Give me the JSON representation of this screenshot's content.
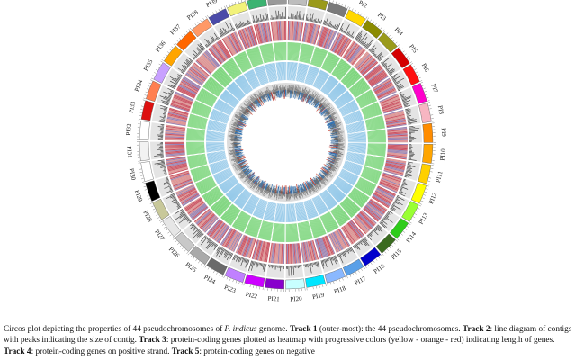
{
  "figure": {
    "chromosomes": [
      {
        "label": "PI1",
        "color": "#7a7a7a"
      },
      {
        "label": "PI2",
        "color": "#ffd700"
      },
      {
        "label": "PI3",
        "color": "#8b8b00"
      },
      {
        "label": "PI4",
        "color": "#9a9a1a"
      },
      {
        "label": "PI5",
        "color": "#d40000"
      },
      {
        "label": "PI6",
        "color": "#ff1010"
      },
      {
        "label": "PI7",
        "color": "#ff00cc"
      },
      {
        "label": "PI8",
        "color": "#f7b6c2"
      },
      {
        "label": "PI9",
        "color": "#ff8c00"
      },
      {
        "label": "PI10",
        "color": "#ffa500"
      },
      {
        "label": "PI11",
        "color": "#ffd000"
      },
      {
        "label": "PI12",
        "color": "#ffff00"
      },
      {
        "label": "PI13",
        "color": "#99ff33"
      },
      {
        "label": "PI14",
        "color": "#2ecc1a"
      },
      {
        "label": "PI15",
        "color": "#3a6b20"
      },
      {
        "label": "PI16",
        "color": "#0000cc"
      },
      {
        "label": "PI17",
        "color": "#5aa0e8"
      },
      {
        "label": "PI18",
        "color": "#8ab8ff"
      },
      {
        "label": "PI19",
        "color": "#00e5ff"
      },
      {
        "label": "PI20",
        "color": "#c8ffff"
      },
      {
        "label": "PI21",
        "color": "#8800cc"
      },
      {
        "label": "PI22",
        "color": "#cc00ff"
      },
      {
        "label": "PI23",
        "color": "#c080ff"
      },
      {
        "label": "PI24",
        "color": "#6a6a6a"
      },
      {
        "label": "PI25",
        "color": "#aaaaaa"
      },
      {
        "label": "PI26",
        "color": "#c8c8c8"
      },
      {
        "label": "PI27",
        "color": "#e6e6e6"
      },
      {
        "label": "PI28",
        "color": "#c8c89a"
      },
      {
        "label": "PI29",
        "color": "#000000"
      },
      {
        "label": "PI30",
        "color": "#ffffff"
      },
      {
        "label": "PI31",
        "color": "#f2f2f2"
      },
      {
        "label": "PI32",
        "color": "#ffffff"
      },
      {
        "label": "PI33",
        "color": "#dd1111"
      },
      {
        "label": "PI34",
        "color": "#ff7f50"
      },
      {
        "label": "PI35",
        "color": "#c8a0ff"
      },
      {
        "label": "PI36",
        "color": "#ffa500"
      },
      {
        "label": "PI37",
        "color": "#ff6600"
      },
      {
        "label": "PI38",
        "color": "#ff9966"
      },
      {
        "label": "PI39",
        "color": "#4a4aa8"
      },
      {
        "label": "PI40",
        "color": "#f2f27a"
      },
      {
        "label": "PI41",
        "color": "#3cb371"
      },
      {
        "label": "PI42",
        "color": "#9a9a9a"
      },
      {
        "label": "PI43",
        "color": "#bdbdbd"
      },
      {
        "label": "PI44",
        "color": "#9a9a1a"
      }
    ],
    "track_colors": {
      "genes_heatmap": "#b84a6a",
      "positive_strand": "#67cc67",
      "negative_strand": "#6ab4e0",
      "line_profile": "#777777"
    }
  },
  "caption": {
    "p1": "Circos plot depicting the properties of 44 pseudochromosomes of ",
    "species": "P. indicus",
    "p2": " genome. ",
    "t1": "Track 1",
    "t1_text": " (outer-most): the 44 pseudochromosomes. ",
    "t2": "Track 2",
    "t2_text": ": line diagram of contigs with peaks indicating the size of contig. ",
    "t3": "Track 3",
    "t3_text": ": protein-coding genes plotted as heatmap with progressive colors (yellow - orange - red) indicating length of genes. ",
    "t4": "Track 4",
    "t4_text": ": protein-coding genes on positive strand. ",
    "t5": "Track 5",
    "t5_text": ": protein-coding genes on negative"
  }
}
